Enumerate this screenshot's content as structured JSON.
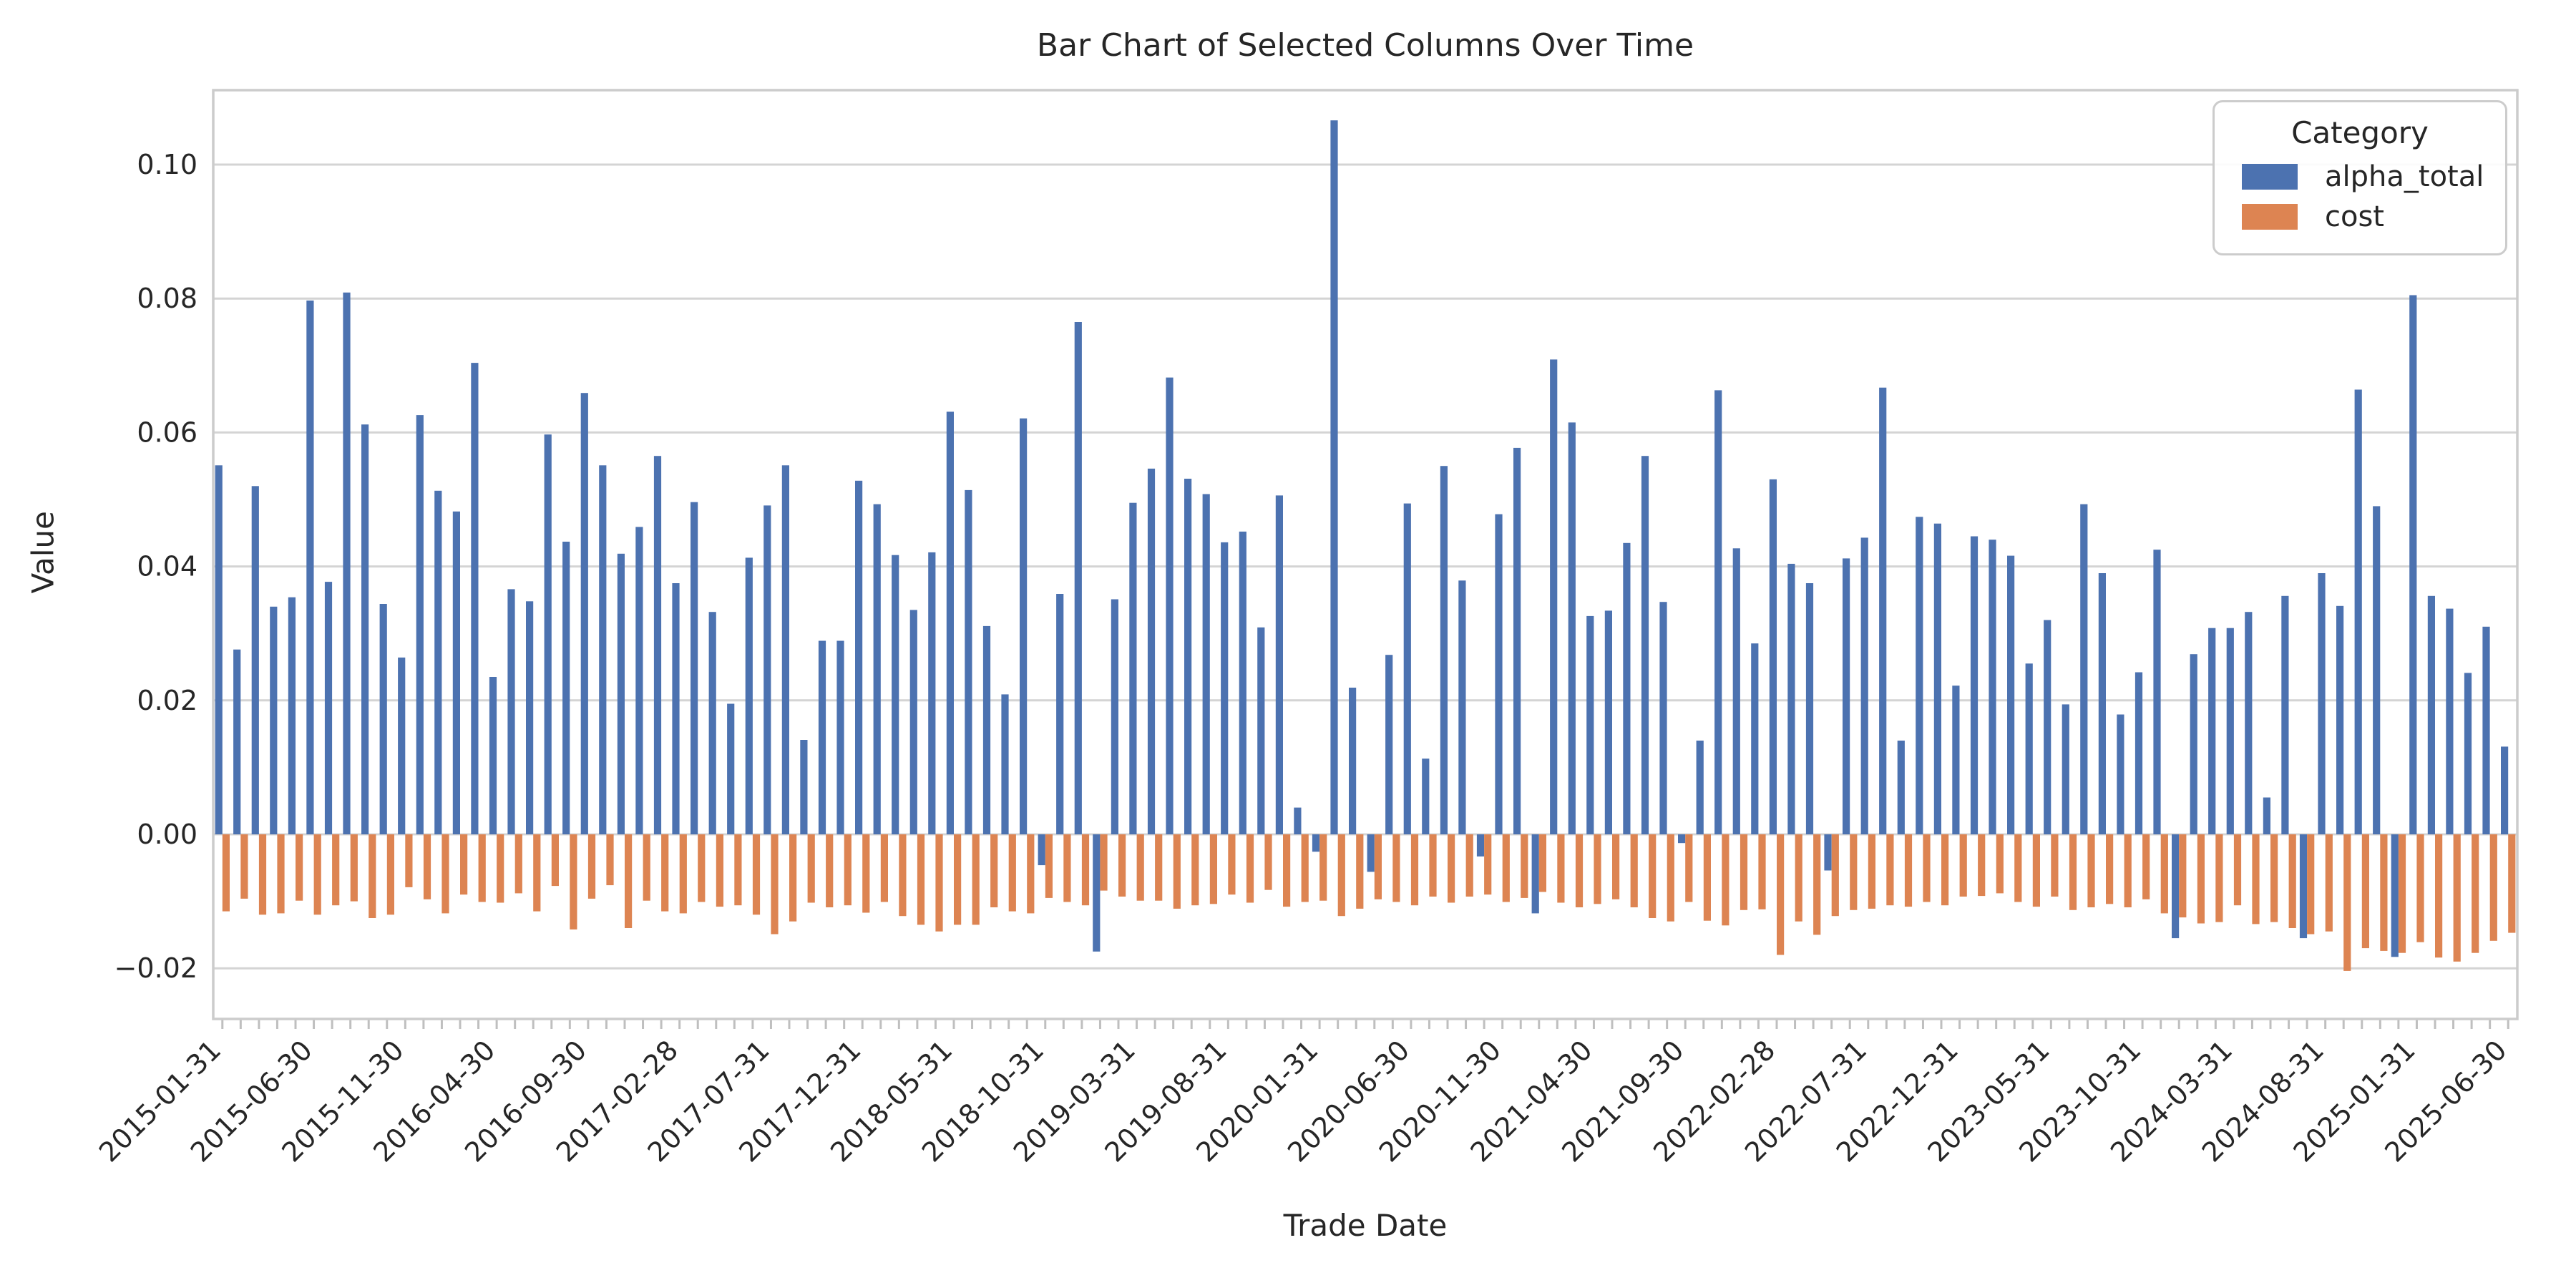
{
  "title": "Bar Chart of Selected Columns Over Time",
  "axes": {
    "xlabel": "Trade Date",
    "ylabel": "Value",
    "y_ticks": [
      "0.10",
      "0.08",
      "0.06",
      "0.04",
      "0.02",
      "0.00",
      "−0.02"
    ]
  },
  "legend": {
    "title": "Category",
    "items": [
      {
        "label": "alpha_total",
        "color": "#4C72B0"
      },
      {
        "label": "cost",
        "color": "#DD8452"
      }
    ]
  },
  "chart_data": {
    "type": "bar",
    "title": "Bar Chart of Selected Columns Over Time",
    "xlabel": "Trade Date",
    "ylabel": "Value",
    "ylim": [
      -0.0276,
      0.1111
    ],
    "grid": "horizontal",
    "legend_position": "upper right",
    "y_tick_values": [
      0.1,
      0.08,
      0.06,
      0.04,
      0.02,
      0.0,
      -0.02
    ],
    "x_tick_every": 5,
    "x_tick_labels": [
      "2015-01-31",
      "2015-06-30",
      "2015-11-30",
      "2016-04-30",
      "2016-09-30",
      "2017-02-28",
      "2017-07-31",
      "2017-12-31",
      "2018-05-31",
      "2018-10-31",
      "2019-03-31",
      "2019-08-31",
      "2020-01-31",
      "2020-06-30",
      "2020-11-30",
      "2021-04-30",
      "2021-09-30",
      "2022-02-28",
      "2022-07-31",
      "2022-12-31",
      "2023-05-31",
      "2023-10-31",
      "2024-03-31",
      "2024-08-31",
      "2025-01-31",
      "2025-06-30"
    ],
    "categories": [
      "2015-01-31",
      "2015-02-28",
      "2015-03-31",
      "2015-04-30",
      "2015-05-31",
      "2015-06-30",
      "2015-07-31",
      "2015-08-31",
      "2015-09-30",
      "2015-10-31",
      "2015-11-30",
      "2015-12-31",
      "2016-01-31",
      "2016-02-29",
      "2016-03-31",
      "2016-04-30",
      "2016-05-31",
      "2016-06-30",
      "2016-07-31",
      "2016-08-31",
      "2016-09-30",
      "2016-10-31",
      "2016-11-30",
      "2016-12-31",
      "2017-01-31",
      "2017-02-28",
      "2017-03-31",
      "2017-04-30",
      "2017-05-31",
      "2017-06-30",
      "2017-07-31",
      "2017-08-31",
      "2017-09-30",
      "2017-10-31",
      "2017-11-30",
      "2017-12-31",
      "2018-01-31",
      "2018-02-28",
      "2018-03-31",
      "2018-04-30",
      "2018-05-31",
      "2018-06-30",
      "2018-07-31",
      "2018-08-31",
      "2018-09-30",
      "2018-10-31",
      "2018-11-30",
      "2018-12-31",
      "2019-01-31",
      "2019-02-28",
      "2019-03-31",
      "2019-04-30",
      "2019-05-31",
      "2019-06-30",
      "2019-07-31",
      "2019-08-31",
      "2019-09-30",
      "2019-10-31",
      "2019-11-30",
      "2019-12-31",
      "2020-01-31",
      "2020-02-29",
      "2020-03-31",
      "2020-04-30",
      "2020-05-31",
      "2020-06-30",
      "2020-07-31",
      "2020-08-31",
      "2020-09-30",
      "2020-10-31",
      "2020-11-30",
      "2020-12-31",
      "2021-01-31",
      "2021-02-28",
      "2021-03-31",
      "2021-04-30",
      "2021-05-31",
      "2021-06-30",
      "2021-07-31",
      "2021-08-31",
      "2021-09-30",
      "2021-10-31",
      "2021-11-30",
      "2021-12-31",
      "2022-01-31",
      "2022-02-28",
      "2022-03-31",
      "2022-04-30",
      "2022-05-31",
      "2022-06-30",
      "2022-07-31",
      "2022-08-31",
      "2022-09-30",
      "2022-10-31",
      "2022-11-30",
      "2022-12-31",
      "2023-01-31",
      "2023-02-28",
      "2023-03-31",
      "2023-04-30",
      "2023-05-31",
      "2023-06-30",
      "2023-07-31",
      "2023-08-31",
      "2023-09-30",
      "2023-10-31",
      "2023-11-30",
      "2023-12-31",
      "2024-01-31",
      "2024-02-29",
      "2024-03-31",
      "2024-04-30",
      "2024-05-31",
      "2024-06-30",
      "2024-07-31",
      "2024-08-31",
      "2024-09-30",
      "2024-10-31",
      "2024-11-30",
      "2024-12-31",
      "2025-01-31",
      "2025-02-28",
      "2025-03-31",
      "2025-04-30",
      "2025-05-31",
      "2025-06-30"
    ],
    "series": [
      {
        "name": "alpha_total",
        "color": "#4C72B0",
        "values": [
          0.0551,
          0.0276,
          0.052,
          0.034,
          0.0354,
          0.0797,
          0.0377,
          0.0809,
          0.0612,
          0.0344,
          0.0264,
          0.0626,
          0.0513,
          0.0482,
          0.0704,
          0.0235,
          0.0366,
          0.0348,
          0.0597,
          0.0437,
          0.0659,
          0.0551,
          0.0419,
          0.0459,
          0.0565,
          0.0375,
          0.0496,
          0.0332,
          0.0195,
          0.0413,
          0.0491,
          0.0551,
          0.0141,
          0.0289,
          0.0289,
          0.0528,
          0.0493,
          0.0417,
          0.0335,
          0.0421,
          0.0631,
          0.0514,
          0.0311,
          0.0209,
          0.0621,
          -0.0046,
          0.0359,
          0.0765,
          -0.0175,
          0.0351,
          0.0495,
          0.0546,
          0.0682,
          0.0531,
          0.0508,
          0.0436,
          0.0452,
          0.0309,
          0.0506,
          0.004,
          -0.0026,
          0.1066,
          0.0219,
          -0.0056,
          0.0268,
          0.0494,
          0.0113,
          0.055,
          0.0379,
          -0.0033,
          0.0478,
          0.0577,
          -0.0118,
          0.0709,
          0.0615,
          0.0326,
          0.0334,
          0.0435,
          0.0565,
          0.0347,
          -0.0013,
          0.014,
          0.0663,
          0.0427,
          0.0285,
          0.053,
          0.0404,
          0.0375,
          -0.0054,
          0.0412,
          0.0443,
          0.0667,
          0.014,
          0.0474,
          0.0464,
          0.0222,
          0.0445,
          0.044,
          0.0416,
          0.0255,
          0.032,
          0.0194,
          0.0493,
          0.039,
          0.0179,
          0.0242,
          0.0425,
          -0.0155,
          0.0269,
          0.0308,
          0.0308,
          0.0332,
          0.0055,
          0.0356,
          -0.0155,
          0.039,
          0.0341,
          0.0664,
          0.049,
          -0.0183,
          0.0805,
          0.0356,
          0.0337,
          0.0241,
          0.031,
          0.0131
        ]
      },
      {
        "name": "cost",
        "color": "#DD8452",
        "values": [
          -0.0115,
          -0.0096,
          -0.012,
          -0.0118,
          -0.0099,
          -0.012,
          -0.0106,
          -0.01,
          -0.0125,
          -0.012,
          -0.0079,
          -0.0097,
          -0.0118,
          -0.009,
          -0.0101,
          -0.0102,
          -0.0088,
          -0.0115,
          -0.0077,
          -0.0142,
          -0.0096,
          -0.0076,
          -0.014,
          -0.0099,
          -0.0115,
          -0.0118,
          -0.0101,
          -0.0108,
          -0.0106,
          -0.012,
          -0.0149,
          -0.013,
          -0.0102,
          -0.0109,
          -0.0106,
          -0.0117,
          -0.0101,
          -0.0122,
          -0.0135,
          -0.0145,
          -0.0135,
          -0.0135,
          -0.0109,
          -0.0115,
          -0.0118,
          -0.0095,
          -0.0101,
          -0.0106,
          -0.0084,
          -0.0093,
          -0.0099,
          -0.0099,
          -0.0111,
          -0.0106,
          -0.0104,
          -0.009,
          -0.0102,
          -0.0083,
          -0.0108,
          -0.0101,
          -0.0099,
          -0.0122,
          -0.0111,
          -0.0097,
          -0.0101,
          -0.0106,
          -0.0093,
          -0.0102,
          -0.0093,
          -0.009,
          -0.0101,
          -0.0095,
          -0.0086,
          -0.0102,
          -0.0109,
          -0.0104,
          -0.0097,
          -0.0109,
          -0.0125,
          -0.013,
          -0.0101,
          -0.0129,
          -0.0136,
          -0.0113,
          -0.0112,
          -0.018,
          -0.013,
          -0.015,
          -0.0122,
          -0.0113,
          -0.0111,
          -0.0106,
          -0.0108,
          -0.0101,
          -0.0106,
          -0.0093,
          -0.0092,
          -0.0088,
          -0.0101,
          -0.0108,
          -0.0093,
          -0.0113,
          -0.0109,
          -0.0104,
          -0.0109,
          -0.0097,
          -0.0118,
          -0.0124,
          -0.0133,
          -0.0131,
          -0.0106,
          -0.0134,
          -0.0131,
          -0.014,
          -0.0149,
          -0.0145,
          -0.0204,
          -0.017,
          -0.0174,
          -0.0177,
          -0.0161,
          -0.0184,
          -0.019,
          -0.0177,
          -0.0159,
          -0.0147
        ]
      }
    ]
  },
  "colors": {
    "background": "#FFFFFF",
    "grid": "#D4D4D4",
    "spine": "#CCCCCC",
    "tick": "#BFBFBF",
    "text": "#262626"
  }
}
